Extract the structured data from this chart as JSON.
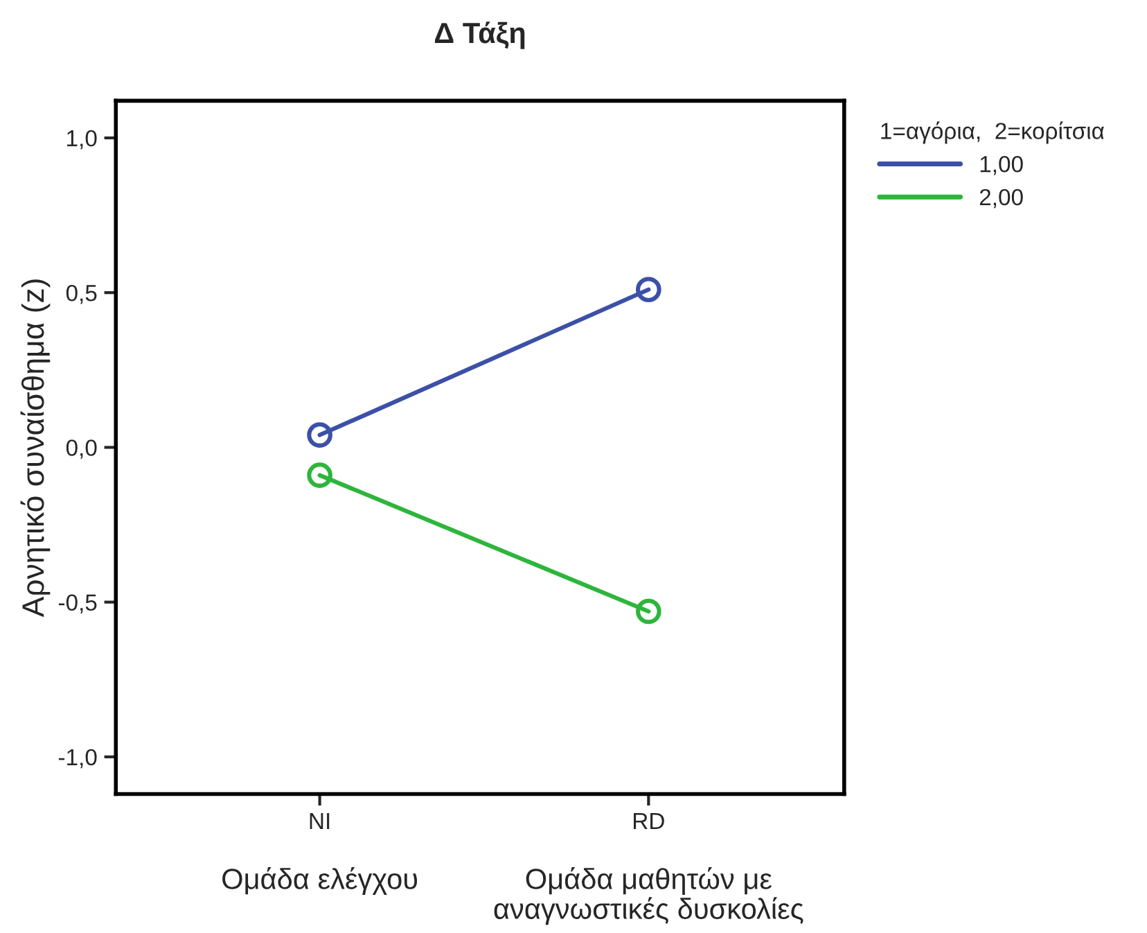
{
  "chart_data": {
    "type": "line",
    "title": "Δ Τάξη",
    "ylabel": "Αρνητικό συναίσθημα (z)",
    "legend_title": "1=αγόρια,  2=κορίτσια",
    "categories": [
      "NI",
      "RD"
    ],
    "series": [
      {
        "name": "1,00",
        "color": "#3c50a8",
        "values": [
          0.04,
          0.51
        ]
      },
      {
        "name": "2,00",
        "color": "#2db53c",
        "values": [
          -0.09,
          -0.53
        ]
      }
    ],
    "ylim": [
      -1.12,
      1.12
    ],
    "yticks": [
      {
        "value": -1,
        "label": "-1,0"
      },
      {
        "value": -0.5,
        "label": "-0,5"
      },
      {
        "value": 0,
        "label": "0,0"
      },
      {
        "value": 0.5,
        "label": "0,5"
      },
      {
        "value": 1,
        "label": "1,0"
      }
    ],
    "annotations": [
      "Ομάδα ελέγχου",
      "Ομάδα μαθητών με\nαναγνωστικές δυσκολίες"
    ],
    "legend": "top right",
    "marker": "circle",
    "line_style": "solid",
    "grid": false
  }
}
